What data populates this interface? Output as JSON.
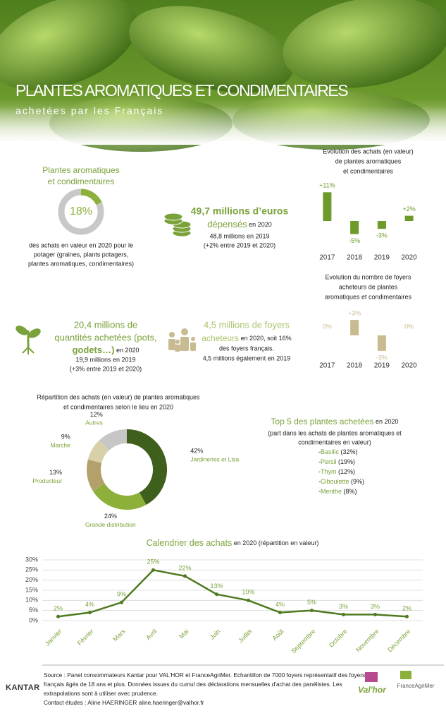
{
  "header": {
    "title": "PLANTES AROMATIQUES ET CONDIMENTAIRES",
    "subtitle": "achetées par les Français"
  },
  "chart_data": [
    {
      "type": "gauge",
      "title": [
        "Plantes aromatiques",
        "et condimentaires"
      ],
      "values": [
        18
      ],
      "value_labels": [
        "18%"
      ],
      "color": "#8db03a",
      "track_color": "#c8c8c8",
      "caption": [
        "des achats en valeur en 2020 pour le",
        "potager (graines, plants potagers,",
        "plantes aromatiques, condimentaires)"
      ]
    },
    {
      "type": "bar",
      "title": [
        "Evolution des achats (en valeur)",
        "de plantes aromatiques",
        "et condimentaires"
      ],
      "categories": [
        "2017",
        "2018",
        "2019",
        "2020"
      ],
      "values": [
        11,
        -5,
        -3,
        2
      ],
      "value_labels": [
        "+11%",
        "-5%",
        "-3%",
        "+2%"
      ],
      "color": "#6e9a2c"
    },
    {
      "type": "bar",
      "title": [
        "Evolution du nombre de foyers",
        "acheteurs de plantes",
        "aromatiques et condimentaires"
      ],
      "categories": [
        "2017",
        "2018",
        "2019",
        "2020"
      ],
      "values": [
        0,
        3,
        -3,
        0
      ],
      "value_labels": [
        "0%",
        "+3%",
        "-3%",
        "0%"
      ],
      "color": "#c9bb91"
    },
    {
      "type": "donut",
      "title": [
        "Répartition des achats (en valeur) de plantes aromatiques",
        "et condimentaires selon le lieu en 2020"
      ],
      "categories": [
        "Jardineries et Lisa",
        "Grande distribution",
        "Producteur",
        "Marche",
        "Autres"
      ],
      "values": [
        42,
        24,
        13,
        9,
        12
      ],
      "value_labels": [
        "42%",
        "24%",
        "13%",
        "9%",
        "12%"
      ],
      "colors": [
        "#3f5f1d",
        "#8db03a",
        "#b3a06a",
        "#d8d0a8",
        "#c6c6c6"
      ]
    },
    {
      "type": "line",
      "title": "Calendrier des achats",
      "title_suffix": "en 2020 (répartition en valeur)",
      "categories": [
        "Janvier",
        "Février",
        "Mars",
        "Avril",
        "Mai",
        "Juin",
        "Juillet",
        "Août",
        "Septembre",
        "Octobre",
        "Novembre",
        "Décembre"
      ],
      "values": [
        2,
        4,
        9,
        25,
        22,
        13,
        10,
        4,
        5,
        3,
        3,
        2
      ],
      "value_labels": [
        "2%",
        "4%",
        "9%",
        "25%",
        "22%",
        "13%",
        "10%",
        "4%",
        "5%",
        "3%",
        "3%",
        "2%"
      ],
      "ylim": [
        0,
        30
      ],
      "yticks": [
        {
          "value": 0,
          "label": "0%"
        },
        {
          "value": 5,
          "label": "5%"
        },
        {
          "value": 10,
          "label": "10%"
        },
        {
          "value": 15,
          "label": "15%"
        },
        {
          "value": 20,
          "label": "20%"
        },
        {
          "value": 25,
          "label": "25%"
        },
        {
          "value": 30,
          "label": "30%"
        }
      ],
      "grid": true,
      "color": "#4f7a1f"
    }
  ],
  "spending": {
    "amount": "49,7 millions d’euros",
    "label": "dépensés",
    "period": "en 2020",
    "previous": "48,8 millions en 2019",
    "change": "(+2% entre 2019 et 2020)"
  },
  "quantities": {
    "line1": "20,4 millions de",
    "line2": "quantités achetées (pots,",
    "line3": "godets…)",
    "period": "en 2020",
    "previous": "19,9 millions en 2019",
    "change": "(+3% entre 2019 et 2020)"
  },
  "households": {
    "line1": "4,5 millions de foyers",
    "label": "acheteurs",
    "rest": "en 2020, soit 16%",
    "line3": "des foyers français.",
    "line4": "4,5 millions également en 2019"
  },
  "top5": {
    "title": "Top 5 des plantes achetées",
    "period": "en 2020",
    "subtitle": [
      "(part dans les achats de plantes aromatiques et",
      "condimentaires en valeur)"
    ],
    "items": [
      {
        "name": "Basilic",
        "share": "(32%)"
      },
      {
        "name": "Persil",
        "share": "(19%)"
      },
      {
        "name": "Thym",
        "share": "(12%)"
      },
      {
        "name": "Ciboulette",
        "share": "(9%)"
      },
      {
        "name": "Menthe",
        "share": "(8%)"
      }
    ]
  },
  "footer": {
    "brand": "KANTAR",
    "source": [
      "Source : Panel consommateurs Kantar pour VAL'HOR et FranceAgriMer. Echantillon de 7000 foyers représentatif des foyers",
      "français âgés de 18 ans et plus. Données issues du cumul des déclarations mensuelles d'achat des panélistes. Les",
      "extrapolations sont à utiliser avec prudence.",
      "Contact études : Aline HAERINGER aline.haeringer@valhor.fr"
    ],
    "logos": [
      "Val'hor",
      "FranceAgriMer"
    ]
  }
}
